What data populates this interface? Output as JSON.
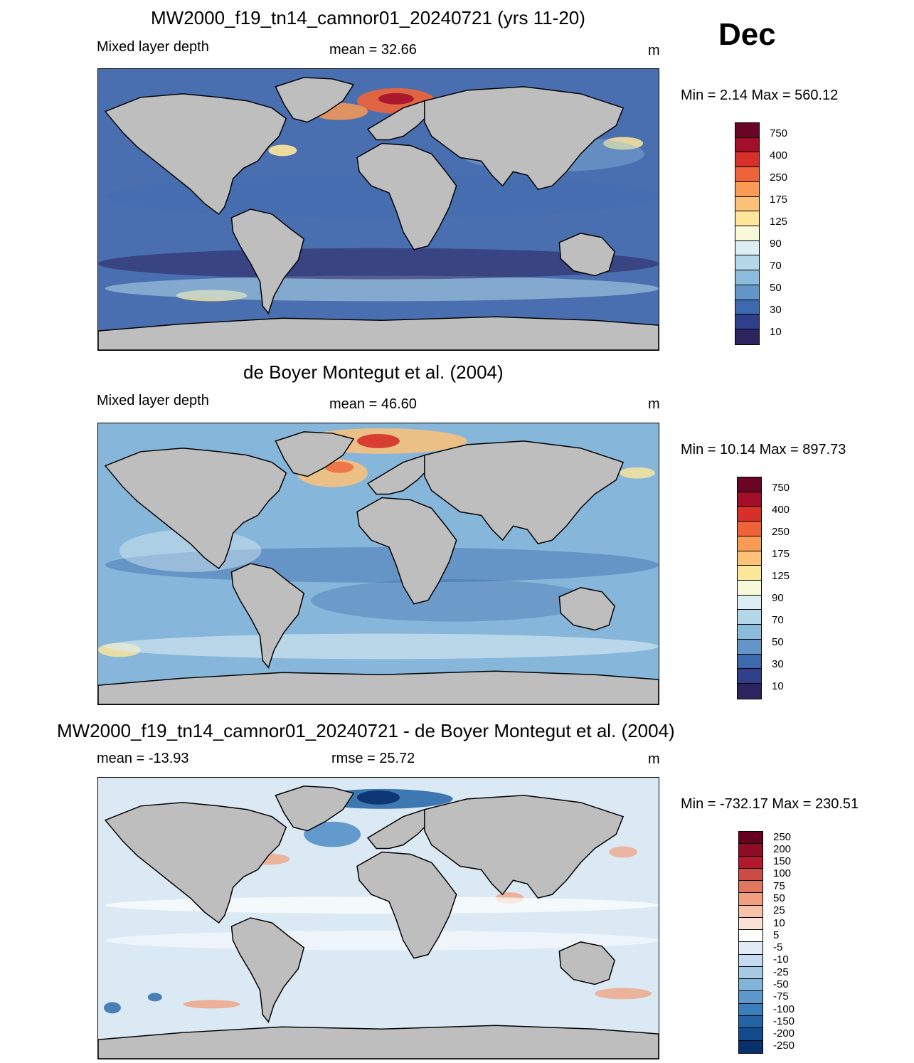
{
  "month": "Dec",
  "land_color": "#bebebe",
  "panels": [
    {
      "title": "MW2000_f19_tn14_camnor01_20240721 (yrs 11-20)",
      "left_label": "Mixed layer depth",
      "center_label": "mean =  32.66",
      "units": "m",
      "minmax": "Min =   2.14 Max = 560.12",
      "ocean_base": "#4a6fb0",
      "colorbar": {
        "colors": [
          "#6a0624",
          "#a30f2a",
          "#d7302a",
          "#ef6339",
          "#f99a55",
          "#fdc278",
          "#fee79a",
          "#f7f9d8",
          "#dcedf4",
          "#b4d8e8",
          "#8cbcdb",
          "#6497c8",
          "#3d6aaf",
          "#2f3f8c",
          "#2c235f"
        ],
        "labels": [
          "750",
          "400",
          "250",
          "175",
          "125",
          "90",
          "70",
          "50",
          "30",
          "10"
        ]
      }
    },
    {
      "title": "de Boyer Montegut et al. (2004)",
      "left_label": "Mixed layer depth",
      "center_label": "mean =  46.60",
      "units": "m",
      "minmax": "Min =  10.14 Max = 897.73",
      "ocean_base": "#86b6d9",
      "colorbar": {
        "colors": [
          "#6a0624",
          "#a30f2a",
          "#d7302a",
          "#ef6339",
          "#f99a55",
          "#fdc278",
          "#fee79a",
          "#f7f9d8",
          "#dcedf4",
          "#b4d8e8",
          "#8cbcdb",
          "#6497c8",
          "#3d6aaf",
          "#2f3f8c",
          "#2c235f"
        ],
        "labels": [
          "750",
          "400",
          "250",
          "175",
          "125",
          "90",
          "70",
          "50",
          "30",
          "10"
        ]
      }
    },
    {
      "title": "MW2000_f19_tn14_camnor01_20240721 - de Boyer Montegut et al. (2004)",
      "left_label": "mean = -13.93",
      "center_label": "rmse =  25.72",
      "units": "m",
      "minmax": "Min = -732.17 Max = 230.51",
      "ocean_base": "#dbe9f4",
      "colorbar": {
        "colors": [
          "#67001f",
          "#8e0c25",
          "#b2182b",
          "#cb4c45",
          "#e0765f",
          "#f0a07f",
          "#f7c2a8",
          "#fbe1d4",
          "#ffffff",
          "#e0ecf5",
          "#c6dbef",
          "#a5cae2",
          "#82b3d8",
          "#5d9acb",
          "#3a7fbd",
          "#2264a6",
          "#124c8e",
          "#08306b"
        ],
        "labels": [
          "250",
          "200",
          "150",
          "100",
          "75",
          "50",
          "25",
          "10",
          "5",
          "-5",
          "-10",
          "-25",
          "-50",
          "-75",
          "-100",
          "-150",
          "-200",
          "-250"
        ]
      }
    }
  ]
}
